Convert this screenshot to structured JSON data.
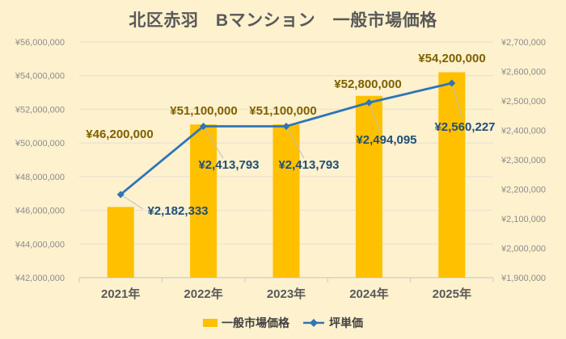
{
  "title": "北区赤羽　Bマンション　一般市場価格",
  "legend": {
    "items": [
      {
        "label": "一般市場価格",
        "marker": "bar-swatch"
      },
      {
        "label": "坪単価",
        "marker": "line-diamond-swatch"
      }
    ]
  },
  "colors": {
    "background": "#FDF1CE",
    "bar": "#FFC000",
    "line": "#2E75B6",
    "bar_label_text": "#7F6000",
    "line_label_text": "#1F4E79",
    "title_text": "#595959",
    "axis_tick_text": "#8C8C8C",
    "x_axis_text": "#595959",
    "gridline": "#E9E3D3",
    "axis_line": "#D8D2C2",
    "leader_line": "#BFBFBF"
  },
  "chart_data": {
    "type": "bar",
    "subtype": "combo bar+line, dual y-axis",
    "title": "北区赤羽　Bマンション　一般市場価格",
    "categories": [
      "2021年",
      "2022年",
      "2023年",
      "2024年",
      "2025年"
    ],
    "series": [
      {
        "name": "一般市場価格",
        "type": "bar",
        "axis": "left",
        "values": [
          46200000,
          51100000,
          51100000,
          52800000,
          54200000
        ],
        "data_labels": [
          "¥46,200,000",
          "¥51,100,000",
          "¥51,100,000",
          "¥52,800,000",
          "¥54,200,000"
        ]
      },
      {
        "name": "坪単価",
        "type": "line",
        "axis": "right",
        "values": [
          2182333,
          2413793,
          2413793,
          2494095,
          2560227
        ],
        "data_labels": [
          "¥2,182,333",
          "¥2,413,793",
          "¥2,413,793",
          "¥2,494,095",
          "¥2,560,227"
        ]
      }
    ],
    "left_axis": {
      "min": 42000000,
      "max": 56000000,
      "step": 2000000,
      "tick_labels": [
        "¥56,000,000",
        "¥54,000,000",
        "¥52,000,000",
        "¥50,000,000",
        "¥48,000,000",
        "¥46,000,000",
        "¥44,000,000",
        "¥42,000,000"
      ]
    },
    "right_axis": {
      "min": 1900000,
      "max": 2700000,
      "step": 100000,
      "tick_labels": [
        "¥2,700,000",
        "¥2,600,000",
        "¥2,500,000",
        "¥2,400,000",
        "¥2,300,000",
        "¥2,200,000",
        "¥2,100,000",
        "¥2,000,000",
        "¥1,900,000"
      ]
    },
    "grid": "horizontal gridlines on, vertical off",
    "legend_position": "bottom"
  }
}
